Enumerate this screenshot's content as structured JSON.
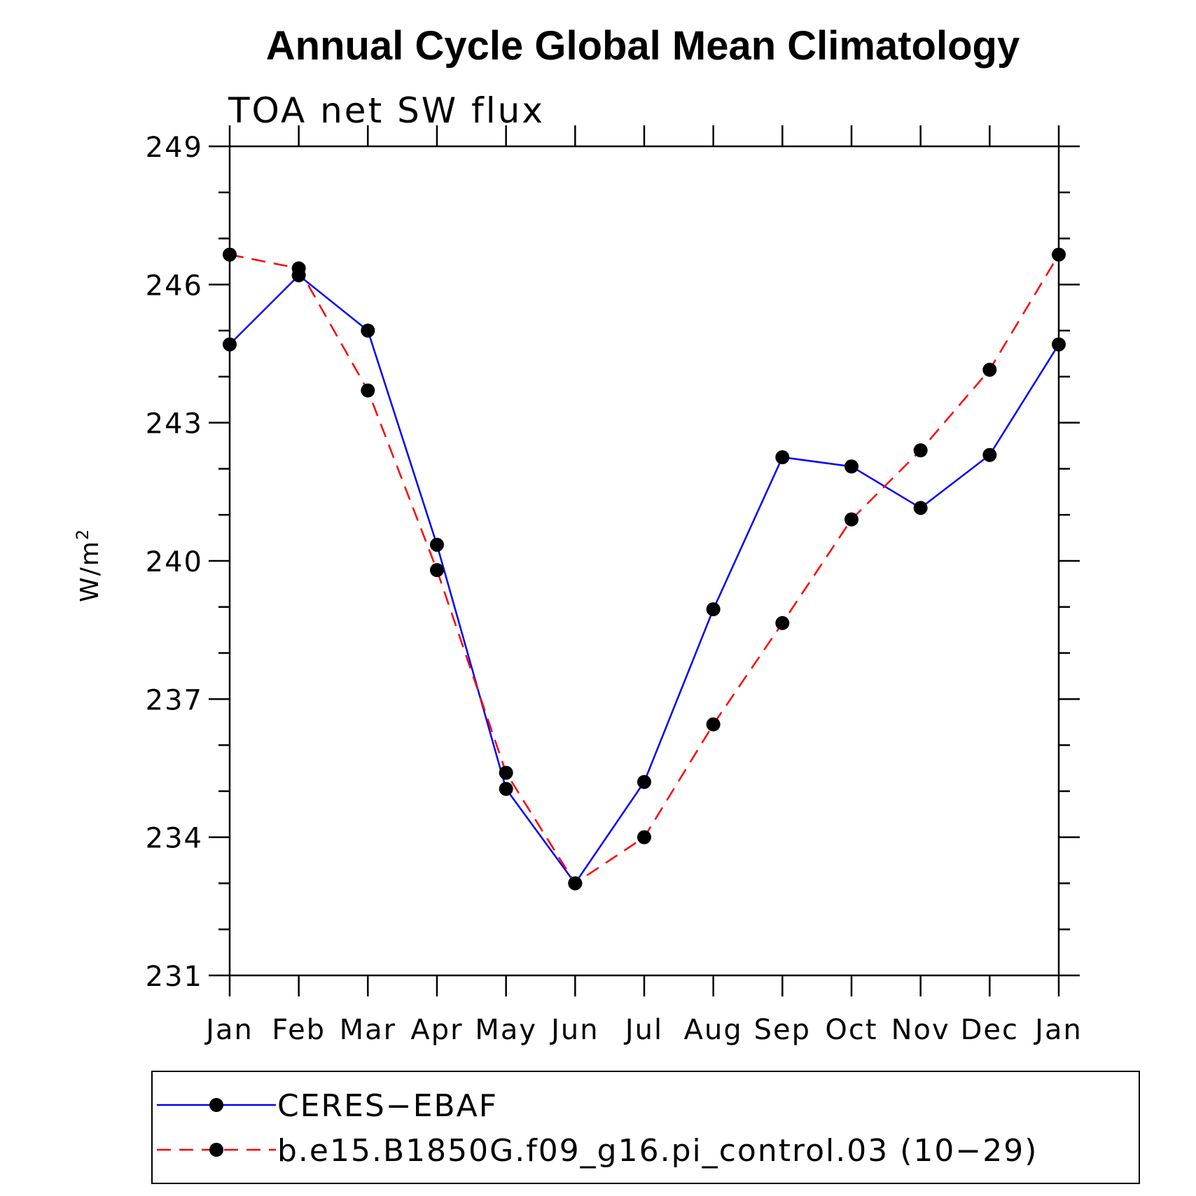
{
  "chart_data": {
    "type": "line",
    "title": "Annual Cycle Global Mean Climatology",
    "subtitle": "TOA net SW flux",
    "ylabel": "W/m",
    "ylabel_sup": "2",
    "xlabel": "",
    "categories": [
      "Jan",
      "Feb",
      "Mar",
      "Apr",
      "May",
      "Jun",
      "Jul",
      "Aug",
      "Sep",
      "Oct",
      "Nov",
      "Dec",
      "Jan"
    ],
    "ylim": [
      231,
      249
    ],
    "yticks": [
      231,
      234,
      237,
      240,
      243,
      246,
      249
    ],
    "grid": false,
    "legend_position": "bottom",
    "series": [
      {
        "name": "CERES−EBAF",
        "color": "#0000ff",
        "dash": "solid",
        "values": [
          244.7,
          246.2,
          245.0,
          240.35,
          235.05,
          233.0,
          235.2,
          238.95,
          242.25,
          242.05,
          241.15,
          242.3,
          244.7
        ]
      },
      {
        "name": "b.e15.B1850G.f09_g16.pi_control.03 (10−29)",
        "color": "#ff0000",
        "dash": "dashed",
        "values": [
          246.65,
          246.35,
          243.7,
          239.8,
          235.4,
          233.0,
          234.0,
          236.45,
          238.65,
          240.9,
          242.4,
          244.15,
          246.65
        ]
      }
    ]
  }
}
